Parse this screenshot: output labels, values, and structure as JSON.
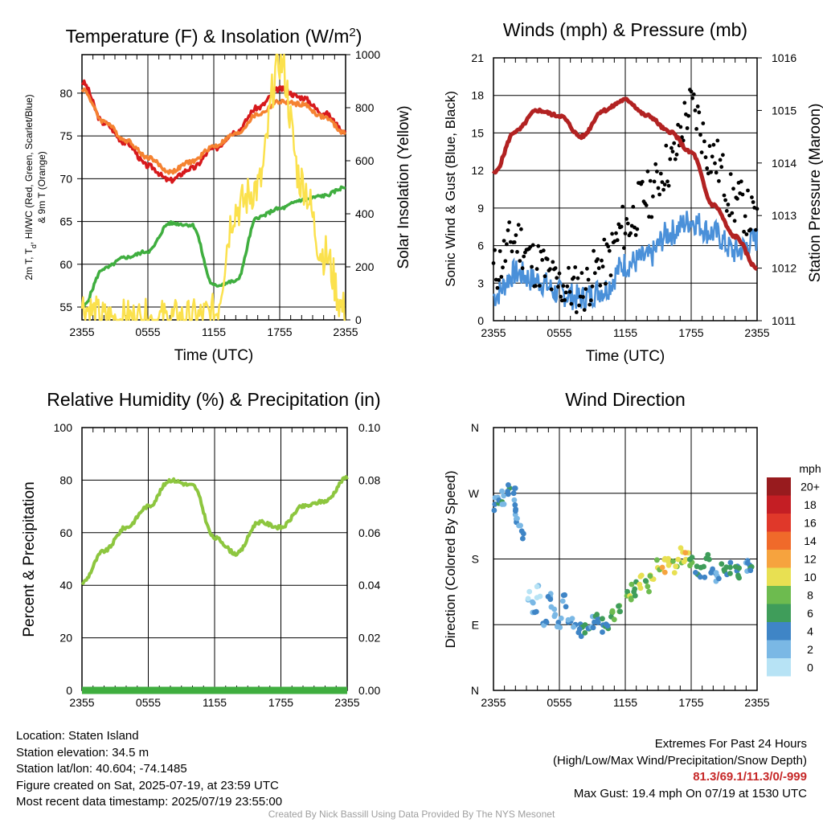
{
  "footer": {
    "location": "Location: Staten Island",
    "elevation": "Station elevation: 34.5 m",
    "latlon": "Station lat/lon: 40.604; -74.1485",
    "created": "Figure created on Sat, 2025-07-19, at 23:59 UTC",
    "recent": "Most recent data timestamp: 2025/07/19 23:55:00",
    "extremes_title": "Extremes For Past 24 Hours",
    "extremes_sub": "(High/Low/Max Wind/Precipitation/Snow Depth)",
    "extremes_values": "81.3/69.1/11.3/0/-999",
    "max_gust": "Max Gust: 19.4 mph On 07/19 at 1530 UTC",
    "credit": "Created By Nick Bassill Using Data Provided By The NYS Mesonet"
  },
  "colors": {
    "temp_red": "#d7191c",
    "temp_orange": "#f58231",
    "dewpoint_green": "#3fae3f",
    "insolation_yellow": "#fbe14d",
    "rh_green": "#8dc63f",
    "precip_green": "#3fae3f",
    "wind_blue": "#4a90d9",
    "gust_black": "#000000",
    "pressure_maroon": "#b22222"
  },
  "chart_data": [
    {
      "type": "line",
      "title": "Temperature (F) & Insolation (W/m²)",
      "xlabel": "Time (UTC)",
      "ylabel": "2m T, Td, HI/WC (Red, Green, Scarlet/Blue) & 9m T (Orange)",
      "ylabel_line1": "2m T, T",
      "ylabel_sub": "d",
      "ylabel_line1_rest": ", HI/WC (Red, Green, Scarlet/Blue)",
      "ylabel_line2": "& 9m T (Orange)",
      "y2label": "Solar Insolation (Yellow)",
      "xticks": [
        "2355",
        "0555",
        "1155",
        "1755",
        "2355"
      ],
      "x": [
        0,
        2,
        4,
        6,
        8,
        10,
        12,
        14,
        16,
        18,
        20,
        22,
        24
      ],
      "ylim": [
        53.5,
        84.5
      ],
      "yticks": [
        55,
        60,
        65,
        70,
        75,
        80
      ],
      "y2lim": [
        0,
        1000
      ],
      "y2ticks": [
        0,
        200,
        400,
        600,
        800,
        1000
      ],
      "grid": true,
      "series": [
        {
          "name": "2m T",
          "color_key": "temp_red",
          "axis": "left",
          "values": [
            81.3,
            76.5,
            74.2,
            71.5,
            69.8,
            71.2,
            73.5,
            75.5,
            78.3,
            80.5,
            79.5,
            77.7,
            75.5
          ]
        },
        {
          "name": "9m T",
          "color_key": "temp_orange",
          "axis": "left",
          "values": [
            80.5,
            76.7,
            74.5,
            72.5,
            70.8,
            72.0,
            73.8,
            75.2,
            77.5,
            79.0,
            78.7,
            77.2,
            75.3
          ]
        },
        {
          "name": "Td",
          "color_key": "dewpoint_green",
          "axis": "left",
          "values": [
            55.0,
            59.5,
            60.8,
            61.5,
            64.8,
            64.6,
            57.5,
            58.0,
            65.5,
            66.5,
            67.5,
            68.0,
            69.0
          ]
        },
        {
          "name": "Insolation",
          "color_key": "insolation_yellow",
          "axis": "right",
          "values": [
            50,
            0,
            0,
            0,
            0,
            0,
            20,
            420,
            500,
            980,
            520,
            250,
            30
          ]
        }
      ]
    },
    {
      "type": "line",
      "title": "Winds (mph) & Pressure (mb)",
      "xlabel": "Time (UTC)",
      "ylabel": "Sonic Wind & Gust (Blue, Black)",
      "y2label": "Station Pressure (Maroon)",
      "xticks": [
        "2355",
        "0555",
        "1155",
        "1755",
        "2355"
      ],
      "x": [
        0,
        2,
        4,
        6,
        8,
        10,
        12,
        14,
        16,
        18,
        20,
        22,
        24
      ],
      "ylim": [
        0,
        21
      ],
      "yticks": [
        0,
        3,
        6,
        9,
        12,
        15,
        18,
        21
      ],
      "y2lim": [
        1011,
        1016
      ],
      "y2ticks": [
        1011,
        1012,
        1013,
        1014,
        1015,
        1016
      ],
      "grid": true,
      "series": [
        {
          "name": "Sonic Wind",
          "color_key": "wind_blue",
          "axis": "left",
          "values": [
            2.0,
            3.8,
            3.2,
            2.2,
            1.8,
            2.5,
            4.5,
            5.0,
            7.0,
            8.0,
            7.0,
            5.5,
            6.5
          ]
        },
        {
          "name": "Gust",
          "color_key": "gust_black",
          "axis": "left",
          "values": [
            4.0,
            6.5,
            4.5,
            2.8,
            2.5,
            4.5,
            7.5,
            10.0,
            12.5,
            17.0,
            13.0,
            9.5,
            8.0
          ]
        },
        {
          "name": "Station Pressure",
          "color_key": "pressure_maroon",
          "axis": "right",
          "values": [
            1013.8,
            1014.6,
            1015.0,
            1014.9,
            1014.5,
            1015.0,
            1015.2,
            1014.9,
            1014.6,
            1014.2,
            1013.2,
            1012.6,
            1012.0
          ]
        }
      ]
    },
    {
      "type": "line",
      "title": "Relative Humidity (%) & Precipitation (in)",
      "ylabel": "Percent & Precipitation",
      "xticks": [
        "2355",
        "0555",
        "1155",
        "1755",
        "2355"
      ],
      "x": [
        0,
        2,
        4,
        6,
        8,
        10,
        12,
        14,
        16,
        18,
        20,
        22,
        24
      ],
      "ylim": [
        0,
        100
      ],
      "yticks": [
        0,
        20,
        40,
        60,
        80,
        100
      ],
      "y2lim": [
        0,
        0.1
      ],
      "y2ticks": [
        "0.00",
        "0.02",
        "0.04",
        "0.06",
        "0.08",
        "0.10"
      ],
      "grid": true,
      "series": [
        {
          "name": "Relative Humidity",
          "color_key": "rh_green",
          "axis": "left",
          "values": [
            41,
            53,
            62,
            70,
            80,
            78,
            58,
            52,
            64,
            62,
            70,
            72,
            81
          ]
        },
        {
          "name": "Precipitation",
          "color_key": "precip_green",
          "axis": "right",
          "values": [
            0,
            0,
            0,
            0,
            0,
            0,
            0,
            0,
            0,
            0,
            0,
            0,
            0
          ]
        }
      ]
    },
    {
      "type": "scatter",
      "title": "Wind Direction",
      "ylabel": "Direction (Colored By Speed)",
      "xticks": [
        "2355",
        "0555",
        "1155",
        "1755",
        "2355"
      ],
      "yticks": [
        "N",
        "E",
        "S",
        "W",
        "N"
      ],
      "ylim": [
        0,
        360
      ],
      "x": [
        0.2,
        0.6,
        1.0,
        1.4,
        1.8,
        2.1,
        2.3,
        2.5,
        3.4,
        3.8,
        4.2,
        4.6,
        5.0,
        5.5,
        6.0,
        6.5,
        7.0,
        7.5,
        8.0,
        8.5,
        9.0,
        9.5,
        10.0,
        10.5,
        11.0,
        11.5,
        12.0,
        12.5,
        13.0,
        13.5,
        14.0,
        14.5,
        15.0,
        15.5,
        16.0,
        16.5,
        17.0,
        17.5,
        18.0,
        18.5,
        19.0,
        19.5,
        20.0,
        20.5,
        21.0,
        21.5,
        22.0,
        22.5,
        23.0,
        23.5
      ],
      "y": [
        255,
        265,
        262,
        275,
        270,
        245,
        225,
        215,
        130,
        110,
        135,
        92,
        125,
        105,
        95,
        120,
        98,
        90,
        80,
        88,
        92,
        98,
        90,
        95,
        108,
        118,
        125,
        135,
        140,
        150,
        145,
        160,
        168,
        172,
        175,
        168,
        185,
        178,
        172,
        165,
        160,
        175,
        170,
        158,
        172,
        168,
        160,
        165,
        172,
        170
      ],
      "speed": [
        3,
        4,
        2,
        4,
        3,
        3,
        2,
        3,
        1,
        2,
        1,
        3,
        2,
        1,
        2,
        3,
        3,
        2,
        4,
        4,
        3,
        4,
        4,
        5,
        7,
        6,
        7,
        8,
        6,
        10,
        7,
        9,
        8,
        10,
        11,
        9,
        8,
        11,
        6,
        5,
        4,
        5,
        4,
        3,
        5,
        4,
        4,
        4,
        3,
        4
      ],
      "colorbar": {
        "label": "mph",
        "labels": [
          "0",
          "2",
          "4",
          "6",
          "8",
          "10",
          "12",
          "14",
          "16",
          "18",
          "20+"
        ],
        "colors": [
          "#b7e3f5",
          "#7ab8e5",
          "#3f85c6",
          "#3f9d5a",
          "#6dbb4f",
          "#e8e052",
          "#f6a33e",
          "#f06a2a",
          "#e0382a",
          "#c41e24",
          "#981b1e"
        ]
      }
    }
  ]
}
